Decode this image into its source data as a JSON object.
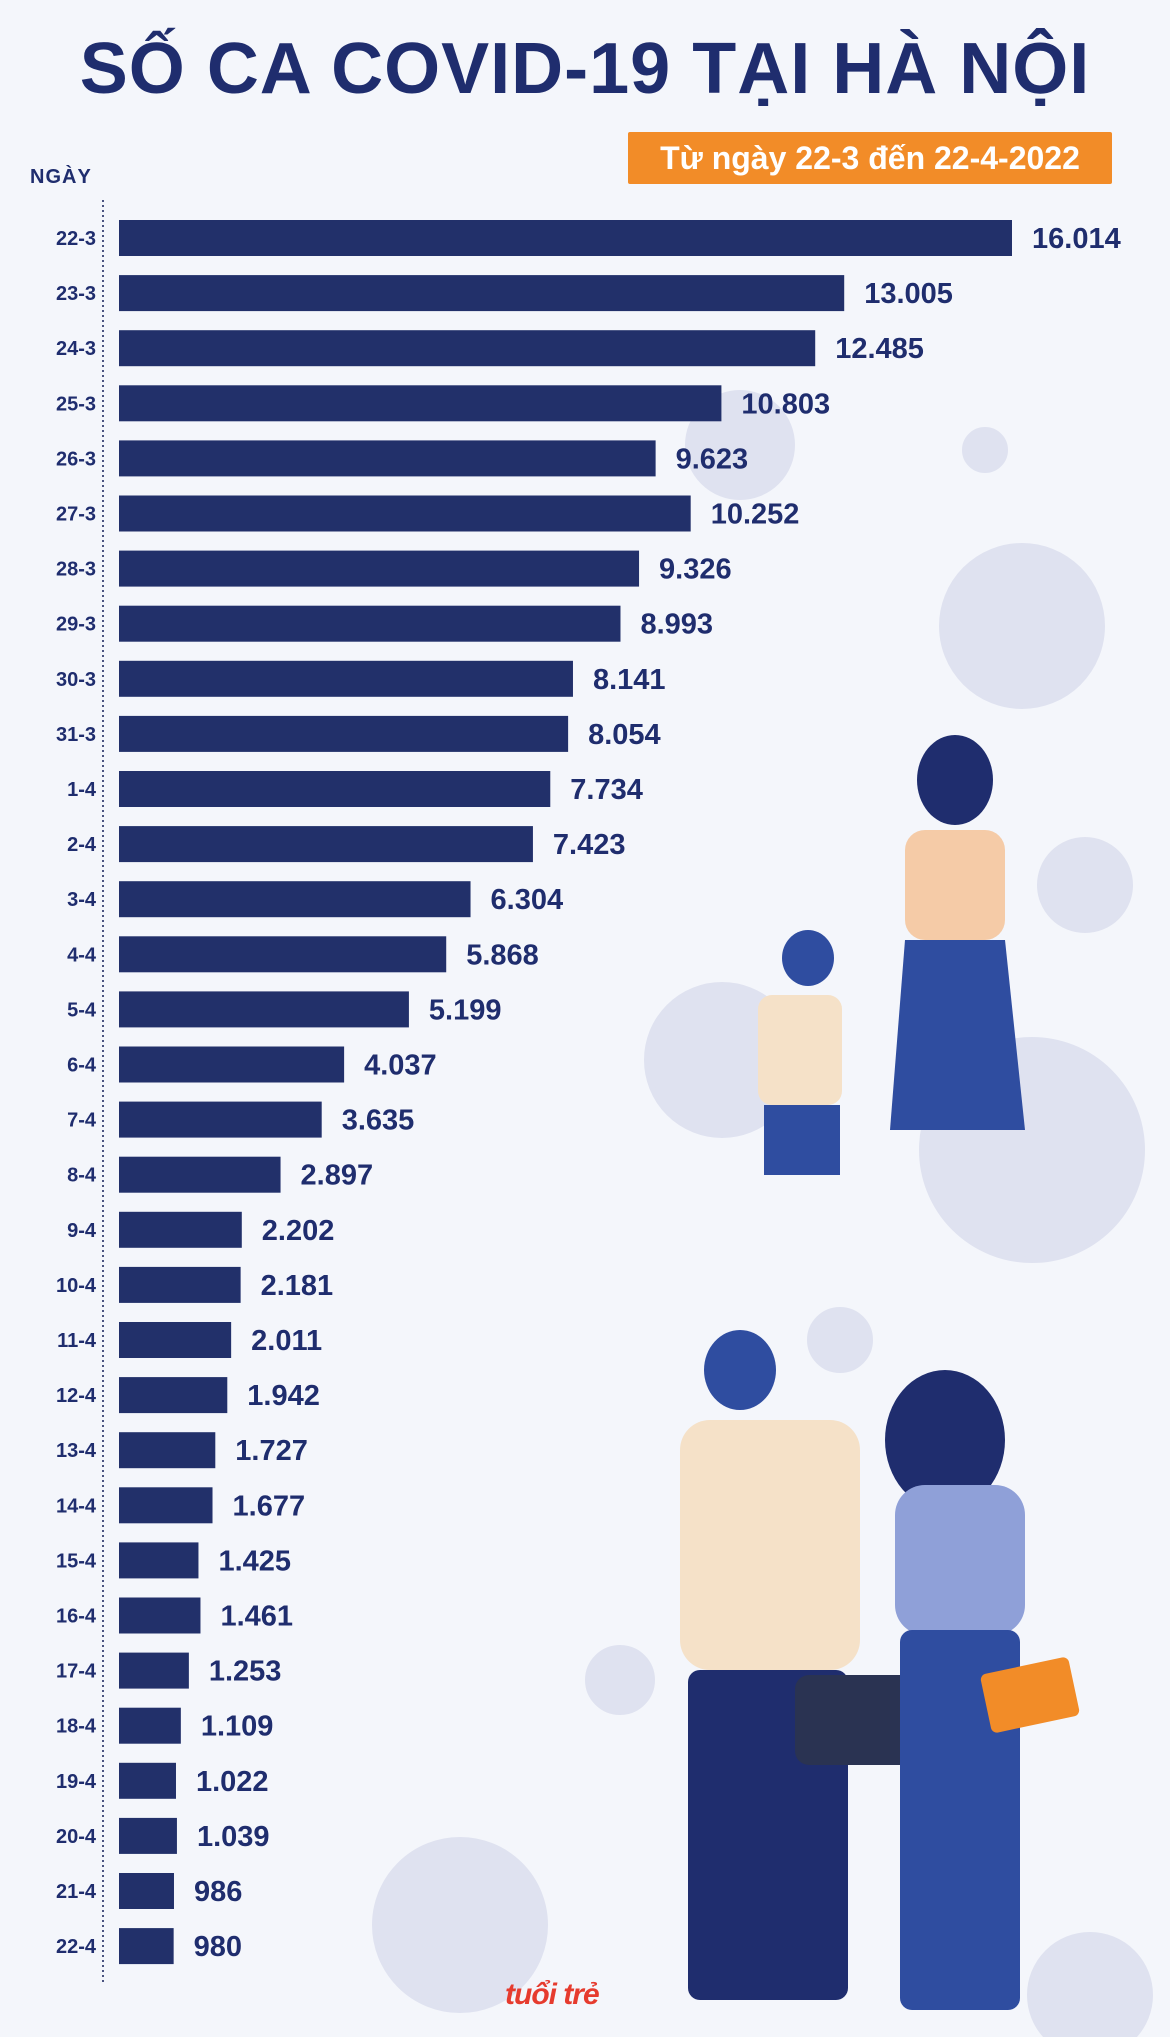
{
  "title": "SỐ CA COVID-19 TẠI HÀ NỘI",
  "subtitle": "Từ ngày 22-3 đến 22-4-2022",
  "logo": "tuổi trẻ",
  "colors": {
    "bar": "#22306a",
    "accent": "#f28c28",
    "title": "#1f2d6e"
  },
  "chart_data": {
    "type": "bar",
    "orientation": "horizontal",
    "title": "SỐ CA COVID-19 TẠI HÀ NỘI",
    "subtitle": "Từ ngày 22-3 đến 22-4-2022",
    "ylabel": "NGÀY",
    "xlabel": "",
    "xlim": [
      0,
      16014
    ],
    "categories": [
      "22-3",
      "23-3",
      "24-3",
      "25-3",
      "26-3",
      "27-3",
      "28-3",
      "29-3",
      "30-3",
      "31-3",
      "1-4",
      "2-4",
      "3-4",
      "4-4",
      "5-4",
      "6-4",
      "7-4",
      "8-4",
      "9-4",
      "10-4",
      "11-4",
      "12-4",
      "13-4",
      "14-4",
      "15-4",
      "16-4",
      "17-4",
      "18-4",
      "19-4",
      "20-4",
      "21-4",
      "22-4"
    ],
    "values": [
      16014,
      13005,
      12485,
      10803,
      9623,
      10252,
      9326,
      8993,
      8141,
      8054,
      7734,
      7423,
      6304,
      5868,
      5199,
      4037,
      3635,
      2897,
      2202,
      2181,
      2011,
      1942,
      1727,
      1677,
      1425,
      1461,
      1253,
      1109,
      1022,
      1039,
      986,
      980
    ],
    "labels": [
      "16.014",
      "13.005",
      "12.485",
      "10.803",
      "9.623",
      "10.252",
      "9.326",
      "8.993",
      "8.141",
      "8.054",
      "7.734",
      "7.423",
      "6.304",
      "5.868",
      "5.199",
      "4.037",
      "3.635",
      "2.897",
      "2.202",
      "2.181",
      "2.011",
      "1.942",
      "1.727",
      "1.677",
      "1.425",
      "1.461",
      "1.253",
      "1.109",
      "1.022",
      "1.039",
      "986",
      "980"
    ]
  }
}
